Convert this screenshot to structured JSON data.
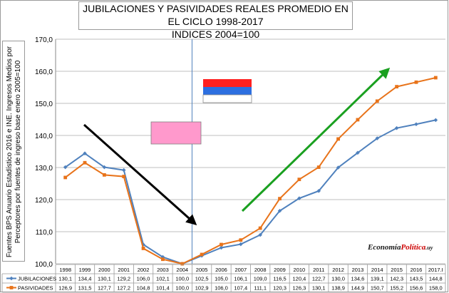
{
  "chart_data": {
    "type": "line",
    "title_line1": "JUBILACIONES Y PASIVIDADES REALES PROMEDIO EN EL CICLO 1998-2017",
    "title_line2": "INDICES 2004=100",
    "ylabel_line1": "Fuentes BPS Anuario Estadístico 2016 e INE. Ingresos Medios por",
    "ylabel_line2": "Perceptores por fuentes de ingreso base enero 2005=100",
    "categories": [
      "1998",
      "1999",
      "2000",
      "2001",
      "2002",
      "2003",
      "2004",
      "2005",
      "2006",
      "2007",
      "2008",
      "2009",
      "2010",
      "2011",
      "2012",
      "2013",
      "2014",
      "2015",
      "2016",
      "2017.I"
    ],
    "y_ticks": [
      "100,0",
      "110,0",
      "120,0",
      "130,0",
      "140,0",
      "150,0",
      "160,0",
      "170,0"
    ],
    "ylim": [
      100,
      170
    ],
    "series": [
      {
        "name": "JUBILACIONES",
        "color": "#4f81bd",
        "values": [
          130.1,
          134.4,
          130.1,
          129.2,
          106.0,
          102.1,
          100.0,
          102.5,
          105.0,
          106.1,
          109.0,
          116.5,
          120.4,
          122.7,
          130.0,
          134.6,
          139.1,
          142.3,
          143.5,
          144.8
        ],
        "labels": [
          "130,1",
          "134,4",
          "130,1",
          "129,2",
          "106,0",
          "102,1",
          "100,0",
          "102,5",
          "105,0",
          "106,1",
          "109,0",
          "116,5",
          "120,4",
          "122,7",
          "130,0",
          "134,6",
          "139,1",
          "142,3",
          "143,5",
          "144,8"
        ]
      },
      {
        "name": "PASIVIDADES",
        "color": "#e8731a",
        "values": [
          126.9,
          131.5,
          127.7,
          127.2,
          104.8,
          101.4,
          100.0,
          102.9,
          106.0,
          107.4,
          111.1,
          120.3,
          126.3,
          130.1,
          138.9,
          144.9,
          150.7,
          155.2,
          156.6,
          158.0
        ],
        "labels": [
          "126,9",
          "131,5",
          "127,7",
          "127,2",
          "104,8",
          "101,4",
          "100,0",
          "102,9",
          "106,0",
          "107,4",
          "111,1",
          "120,3",
          "126,3",
          "130,1",
          "138,9",
          "144,9",
          "150,7",
          "155,2",
          "156,6",
          "158,0"
        ]
      }
    ],
    "grid": true,
    "legend": "table-below"
  },
  "brand": {
    "part1": "Economía",
    "part2": "Política",
    "part3": ".uy"
  },
  "flag_colors": {
    "pink": "#ff99cc",
    "red": "#ff2020",
    "blue": "#2d6fe0",
    "white": "#ffffff"
  },
  "arrow_colors": {
    "down": "#000000",
    "up": "#1aa020"
  }
}
